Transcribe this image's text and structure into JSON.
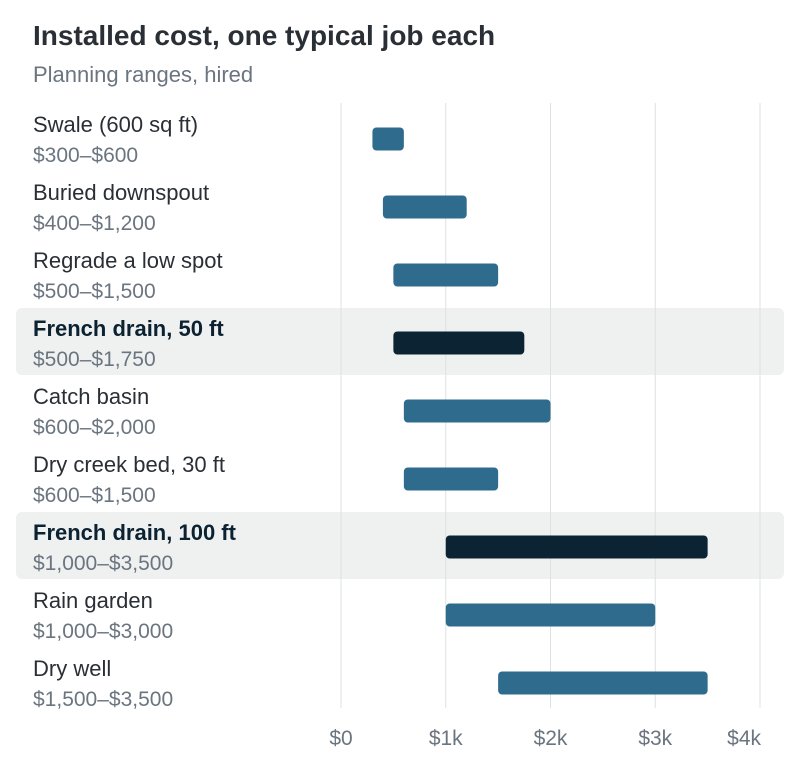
{
  "title": "Installed cost, one typical job each",
  "subtitle": "Planning ranges, hired",
  "colors": {
    "bar": "#2f6b8c",
    "highlight_bar": "#0b2333",
    "highlight_band": "#eff1f1",
    "grid": "#dde1e3"
  },
  "chart_data": {
    "type": "bar",
    "orientation": "horizontal-range",
    "title": "Installed cost, one typical job each",
    "subtitle": "Planning ranges, hired",
    "xlim": [
      0,
      4000
    ],
    "x_ticks": [
      0,
      1000,
      2000,
      3000,
      4000
    ],
    "x_tick_labels": [
      "$0",
      "$1k",
      "$2k",
      "$3k",
      "$4k"
    ],
    "grid": true,
    "rows": [
      {
        "label": "Swale (600 sq ft)",
        "range_label": "$300–$600",
        "low": 300,
        "high": 600,
        "highlight": false
      },
      {
        "label": "Buried downspout",
        "range_label": "$400–$1,200",
        "low": 400,
        "high": 1200,
        "highlight": false
      },
      {
        "label": "Regrade a low spot",
        "range_label": "$500–$1,500",
        "low": 500,
        "high": 1500,
        "highlight": false
      },
      {
        "label": "French drain, 50 ft",
        "range_label": "$500–$1,750",
        "low": 500,
        "high": 1750,
        "highlight": true
      },
      {
        "label": "Catch basin",
        "range_label": "$600–$2,000",
        "low": 600,
        "high": 2000,
        "highlight": false
      },
      {
        "label": "Dry creek bed, 30 ft",
        "range_label": "$600–$1,500",
        "low": 600,
        "high": 1500,
        "highlight": false
      },
      {
        "label": "French drain, 100 ft",
        "range_label": "$1,000–$3,500",
        "low": 1000,
        "high": 3500,
        "highlight": true
      },
      {
        "label": "Rain garden",
        "range_label": "$1,000–$3,000",
        "low": 1000,
        "high": 3000,
        "highlight": false
      },
      {
        "label": "Dry well",
        "range_label": "$1,500–$3,500",
        "low": 1500,
        "high": 3500,
        "highlight": false
      }
    ]
  }
}
